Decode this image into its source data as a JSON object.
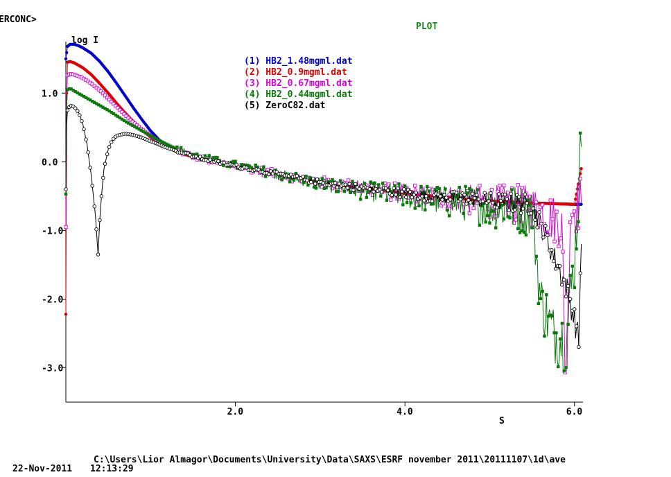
{
  "window": {
    "program_label": "ERCONC>",
    "plot_label": "PLOT"
  },
  "footer": {
    "path": "C:\\Users\\Lior Almagor\\Documents\\University\\Data\\SAXS\\ESRF november 2011\\20111107\\1d\\ave",
    "date": "22-Nov-2011",
    "time": "12:13:29"
  },
  "colors": {
    "plot_label": "#1a8a1a",
    "axis": "#000000",
    "series_1": "#0000cc",
    "series_2": "#dd0000",
    "series_3": "#dd00dd",
    "series_4": "#0a7a0a",
    "series_5": "#000000"
  },
  "chart_data": {
    "type": "scatter",
    "title": "",
    "xlabel": "S",
    "ylabel": "log I",
    "xlim": [
      0.0,
      6.1
    ],
    "ylim": [
      -3.5,
      1.75
    ],
    "x_ticks": [
      2.0,
      4.0,
      6.0
    ],
    "x_tick_labels": [
      "2.0",
      "4.0",
      "6.0"
    ],
    "y_ticks": [
      1.0,
      0.0,
      -1.0,
      -2.0,
      -3.0
    ],
    "y_tick_labels": [
      "1.0",
      "0.0",
      "-1.0",
      "-2.0",
      "-3.0"
    ],
    "grid": false,
    "legend_position": "top-center",
    "legend": [
      "(1) HB2_1.48mgml.dat",
      "(2) HB2_0.9mgml.dat",
      "(3) HB2_0.67mgml.dat",
      "(4) HB2_0.44mgml.dat",
      "(5) ZeroC82.dat"
    ],
    "series": [
      {
        "name": "(1) HB2_1.48mgml.dat",
        "marker": "filled-circle",
        "x": [
          0.0,
          0.02,
          0.05,
          0.1,
          0.15,
          0.2,
          0.3,
          0.4,
          0.5,
          0.6,
          0.7,
          0.8,
          0.9,
          1.0,
          1.1,
          1.2,
          1.3,
          1.5,
          1.75,
          2.0,
          2.5,
          3.0,
          3.5,
          4.0,
          4.5,
          5.0,
          5.5,
          6.0,
          6.08
        ],
        "y": [
          1.5,
          1.68,
          1.71,
          1.71,
          1.69,
          1.66,
          1.58,
          1.46,
          1.31,
          1.14,
          0.96,
          0.78,
          0.61,
          0.45,
          0.32,
          0.22,
          0.15,
          0.07,
          0.0,
          -0.06,
          -0.18,
          -0.3,
          -0.38,
          -0.46,
          -0.52,
          -0.57,
          -0.6,
          -0.62,
          -0.62
        ],
        "noise": 0.0
      },
      {
        "name": "(2) HB2_0.9mgml.dat",
        "marker": "filled-circle",
        "x": [
          0.0,
          0.01,
          0.02,
          0.05,
          0.1,
          0.2,
          0.3,
          0.4,
          0.5,
          0.6,
          0.7,
          0.8,
          0.9,
          1.0,
          1.1,
          1.2,
          1.3,
          1.5,
          1.75,
          2.0,
          2.5,
          3.0,
          3.5,
          4.0,
          4.5,
          5.0,
          5.5,
          6.0,
          6.08
        ],
        "y": [
          -2.22,
          1.0,
          1.45,
          1.46,
          1.44,
          1.37,
          1.27,
          1.14,
          1.0,
          0.85,
          0.71,
          0.58,
          0.46,
          0.36,
          0.28,
          0.21,
          0.15,
          0.07,
          0.0,
          -0.06,
          -0.18,
          -0.3,
          -0.38,
          -0.46,
          -0.52,
          -0.57,
          -0.6,
          -0.62,
          -0.1
        ],
        "noise": 0.0
      },
      {
        "name": "(3) HB2_0.67mgml.dat",
        "marker": "open-square",
        "x": [
          0.0,
          0.01,
          0.02,
          0.05,
          0.1,
          0.2,
          0.3,
          0.4,
          0.5,
          0.6,
          0.7,
          0.8,
          0.9,
          1.0,
          1.1,
          1.2,
          1.3,
          1.5,
          1.75,
          2.0,
          2.5,
          3.0,
          3.5,
          4.0,
          4.5,
          5.0,
          5.5,
          5.85,
          5.9,
          5.95,
          6.08
        ],
        "y": [
          -0.95,
          1.0,
          1.26,
          1.28,
          1.27,
          1.22,
          1.14,
          1.04,
          0.92,
          0.8,
          0.68,
          0.57,
          0.47,
          0.38,
          0.3,
          0.23,
          0.17,
          0.08,
          0.0,
          -0.06,
          -0.18,
          -0.3,
          -0.38,
          -0.46,
          -0.52,
          -0.58,
          -0.65,
          -0.9,
          -3.5,
          -0.7,
          -0.6
        ],
        "noise": 0.12
      },
      {
        "name": "(4) HB2_0.44mgml.dat",
        "marker": "filled-square",
        "x": [
          0.0,
          0.01,
          0.02,
          0.05,
          0.1,
          0.2,
          0.3,
          0.4,
          0.5,
          0.6,
          0.7,
          0.8,
          0.9,
          1.0,
          1.1,
          1.2,
          1.3,
          1.5,
          1.75,
          2.0,
          2.5,
          3.0,
          3.5,
          4.0,
          4.5,
          5.0,
          5.5,
          5.6,
          5.75,
          5.9,
          6.0,
          6.08
        ],
        "y": [
          -0.47,
          0.8,
          1.05,
          1.07,
          1.03,
          0.96,
          0.89,
          0.82,
          0.75,
          0.67,
          0.59,
          0.52,
          0.45,
          0.38,
          0.31,
          0.25,
          0.19,
          0.1,
          0.02,
          -0.05,
          -0.18,
          -0.32,
          -0.42,
          -0.5,
          -0.58,
          -0.65,
          -0.7,
          -2.0,
          -2.5,
          -2.6,
          -1.4,
          0.22
        ],
        "noise": 0.15
      },
      {
        "name": "(5) ZeroC82.dat",
        "marker": "open-circle",
        "x": [
          0.0,
          0.01,
          0.02,
          0.05,
          0.1,
          0.15,
          0.2,
          0.25,
          0.3,
          0.35,
          0.38,
          0.4,
          0.42,
          0.45,
          0.5,
          0.55,
          0.6,
          0.7,
          0.8,
          0.9,
          1.0,
          1.2,
          1.5,
          1.75,
          2.0,
          2.5,
          3.0,
          3.5,
          4.0,
          4.5,
          5.0,
          5.5,
          5.9,
          6.0,
          6.05,
          6.08
        ],
        "y": [
          -0.4,
          0.55,
          0.75,
          0.82,
          0.8,
          0.72,
          0.55,
          0.25,
          -0.2,
          -0.8,
          -1.35,
          -0.85,
          -0.5,
          -0.1,
          0.18,
          0.32,
          0.38,
          0.41,
          0.39,
          0.35,
          0.3,
          0.2,
          0.08,
          0.0,
          -0.06,
          -0.18,
          -0.3,
          -0.38,
          -0.46,
          -0.52,
          -0.57,
          -0.62,
          -1.8,
          -2.3,
          -2.6,
          -1.2
        ],
        "noise": 0.06
      }
    ]
  }
}
